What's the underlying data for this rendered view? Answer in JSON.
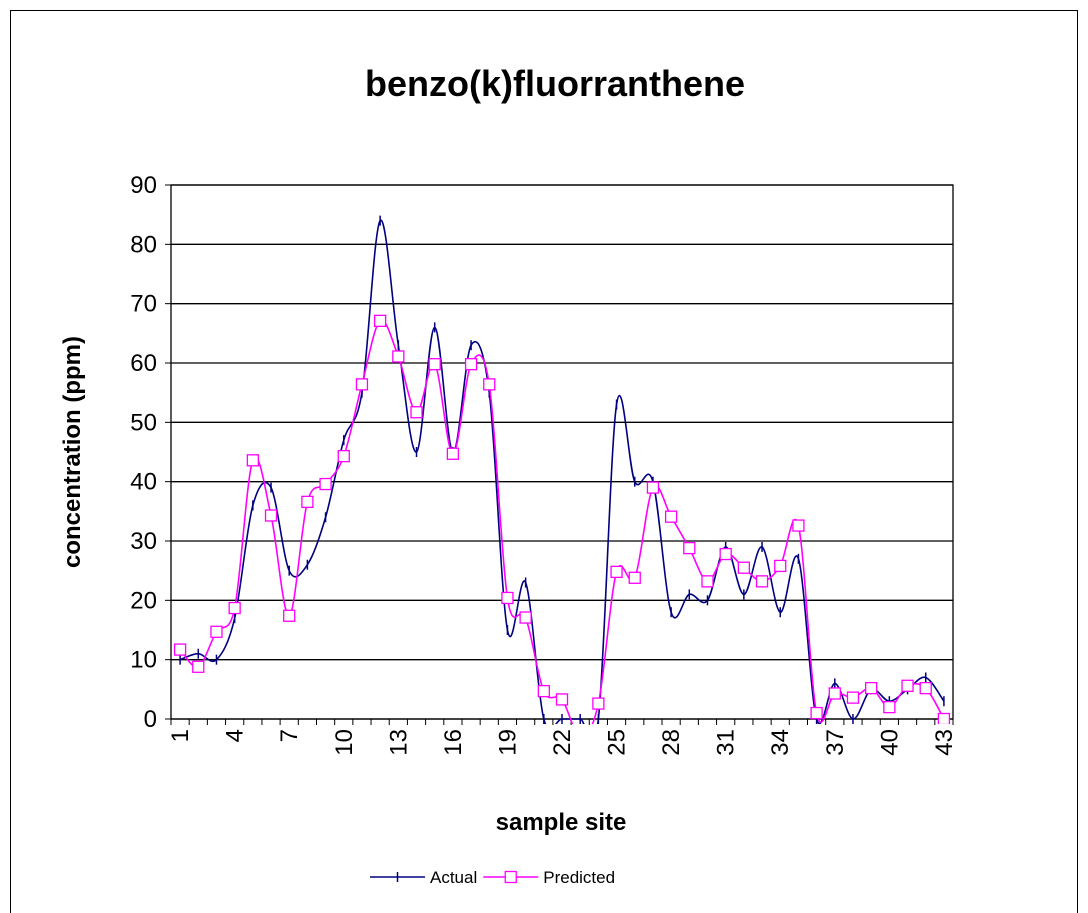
{
  "chart_data": {
    "type": "line",
    "title": "benzo(k)fluorranthene",
    "x_label": "sample site",
    "y_label": "concentration (ppm)",
    "categories": [
      "1",
      null,
      null,
      "4",
      null,
      null,
      "7",
      null,
      null,
      "10",
      null,
      null,
      "13",
      null,
      null,
      "16",
      null,
      null,
      "19",
      null,
      null,
      "22",
      null,
      null,
      "25",
      null,
      null,
      "28",
      null,
      null,
      "31",
      null,
      null,
      "34",
      null,
      null,
      "37",
      null,
      null,
      "40",
      null,
      null,
      "43"
    ],
    "series": [
      {
        "name": "Actual",
        "color": "#000080",
        "marker": "dash",
        "values": [
          10,
          11,
          10,
          17,
          36,
          39,
          25,
          26,
          34,
          47,
          55,
          84,
          63,
          45,
          66,
          45,
          63,
          55,
          15,
          23,
          0,
          0,
          0,
          0,
          53,
          40,
          40,
          18,
          21,
          20,
          29,
          21,
          29,
          18,
          27,
          0,
          6,
          0,
          5,
          3,
          5,
          7,
          3
        ]
      },
      {
        "name": "Predicted",
        "color": "#ff00ff",
        "marker": "square",
        "values": [
          11.7,
          8.8,
          14.7,
          18.7,
          43.6,
          34.3,
          17.4,
          36.6,
          39.6,
          44.3,
          56.4,
          67.1,
          61.1,
          51.7,
          59.8,
          44.7,
          59.8,
          56.4,
          20.4,
          17.1,
          4.7,
          3.3,
          -3,
          2.6,
          24.8,
          23.8,
          39,
          34.1,
          28.8,
          23.2,
          27.8,
          25.5,
          23.2,
          25.8,
          32.6,
          1,
          4.3,
          3.6,
          5.2,
          2,
          5.6,
          5.2,
          0
        ]
      }
    ],
    "ylim": [
      0,
      90
    ],
    "yticks": [
      0,
      10,
      20,
      30,
      40,
      50,
      60,
      70,
      80,
      90
    ],
    "grid": true,
    "legend": "bottom"
  }
}
